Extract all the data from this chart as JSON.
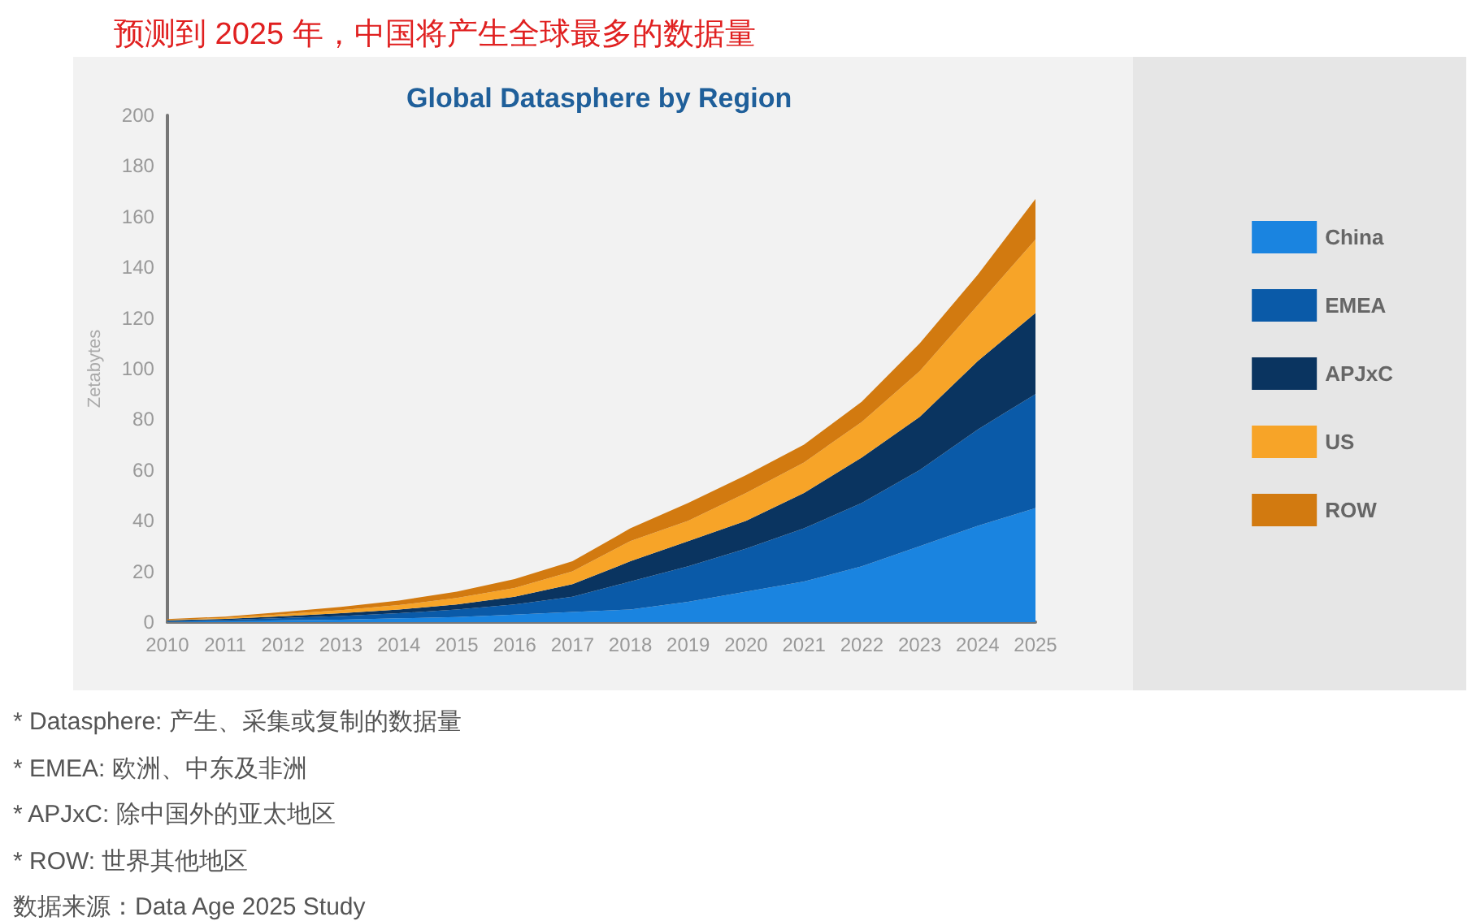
{
  "chart_data": {
    "type": "area",
    "title": "Global Datasphere by Region",
    "subtitle": "预测到 2025 年，中国将产生全球最多的数据量",
    "ylabel": "Zetabytes",
    "categories": [
      "2010",
      "2011",
      "2012",
      "2013",
      "2014",
      "2015",
      "2016",
      "2017",
      "2018",
      "2019",
      "2020",
      "2021",
      "2022",
      "2023",
      "2024",
      "2025"
    ],
    "series": [
      {
        "name": "China",
        "color": "#1a84e0",
        "values": [
          0.2,
          0.4,
          0.7,
          1,
          1.5,
          2,
          3,
          4,
          5,
          8,
          12,
          16,
          22,
          30,
          38,
          45
        ]
      },
      {
        "name": "EMEA",
        "color": "#0a5aa8",
        "values": [
          0.3,
          0.5,
          0.9,
          1.4,
          2,
          3,
          4,
          6,
          11,
          14,
          17,
          21,
          25,
          30,
          38,
          45
        ]
      },
      {
        "name": "APJxC",
        "color": "#0a3460",
        "values": [
          0.2,
          0.4,
          0.7,
          1.1,
          1.5,
          2,
          3,
          5,
          8,
          10,
          11,
          14,
          18,
          21,
          27,
          32
        ]
      },
      {
        "name": "US",
        "color": "#f7a428",
        "values": [
          0.2,
          0.4,
          0.8,
          1.2,
          1.7,
          2.5,
          3.5,
          5,
          8,
          8,
          11,
          12,
          14,
          18,
          22,
          29
        ]
      },
      {
        "name": "ROW",
        "color": "#d27a10",
        "values": [
          0.3,
          0.5,
          0.9,
          1.3,
          1.8,
          2.5,
          3.5,
          4,
          5,
          7,
          7,
          7,
          8,
          11,
          12,
          16
        ]
      }
    ],
    "stacked": true,
    "ylim": [
      0,
      200
    ],
    "yticks": [
      0,
      20,
      40,
      60,
      80,
      100,
      120,
      140,
      160,
      180,
      200
    ],
    "grid": false,
    "legend": "right",
    "marker": "none",
    "annotations": [
      "* Datasphere: 产生、采集或复制的数据量",
      "* EMEA: 欧洲、中东及非洲",
      "* APJxC: 除中国外的亚太地区",
      "* ROW: 世界其他地区",
      "数据来源：Data Age 2025 Study"
    ]
  }
}
